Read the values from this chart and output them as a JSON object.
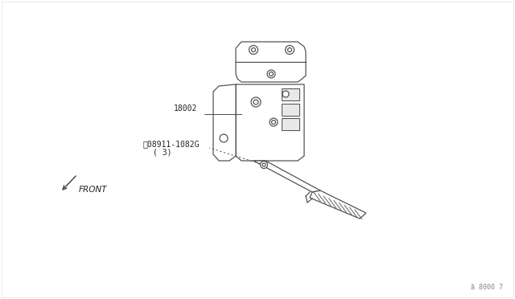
{
  "bg_color": "#ffffff",
  "line_color": "#4a4a4a",
  "label_18002": "18002",
  "label_part": "ⓝ08911-1082G",
  "label_qty": "( 3)",
  "label_front": "FRONT",
  "label_code": "ã 8000 7",
  "font_size_label": 7.0,
  "font_size_code": 6.0,
  "lw": 0.85
}
